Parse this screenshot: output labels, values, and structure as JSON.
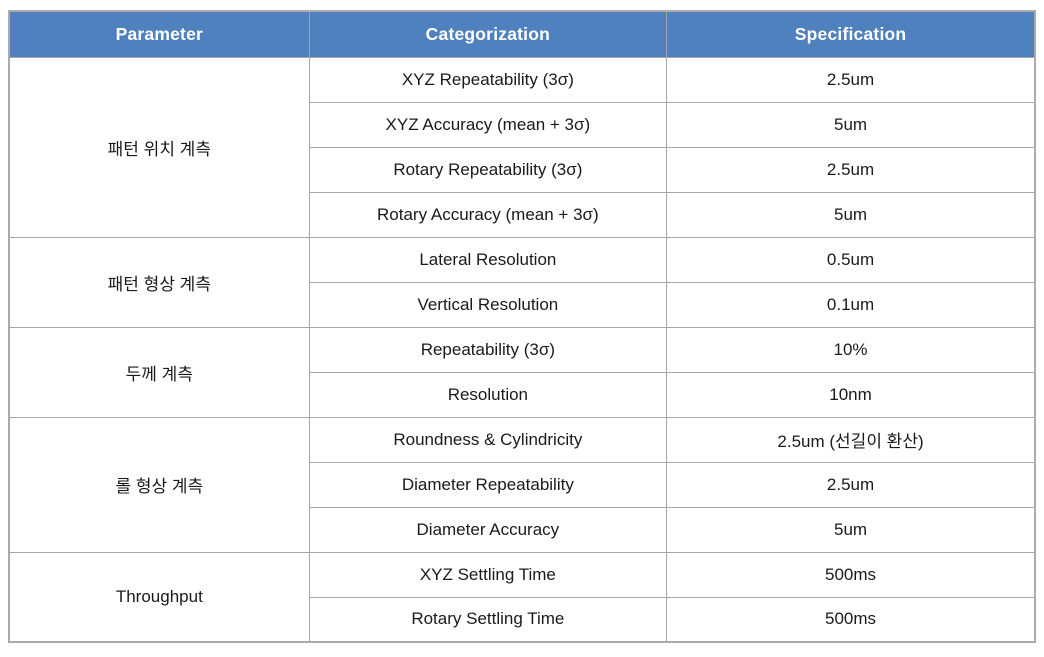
{
  "table": {
    "headers": [
      "Parameter",
      "Categorization",
      "Specification"
    ],
    "groups": [
      {
        "parameter": "패턴 위치 계측",
        "rows": [
          {
            "categorization": "XYZ Repeatability (3σ)",
            "specification": "2.5um"
          },
          {
            "categorization": "XYZ Accuracy (mean + 3σ)",
            "specification": "5um"
          },
          {
            "categorization": "Rotary Repeatability (3σ)",
            "specification": "2.5um"
          },
          {
            "categorization": "Rotary Accuracy (mean + 3σ)",
            "specification": "5um"
          }
        ]
      },
      {
        "parameter": "패턴 형상 계측",
        "rows": [
          {
            "categorization": "Lateral Resolution",
            "specification": "0.5um"
          },
          {
            "categorization": "Vertical Resolution",
            "specification": "0.1um"
          }
        ]
      },
      {
        "parameter": "두께 계측",
        "rows": [
          {
            "categorization": "Repeatability (3σ)",
            "specification": "10%"
          },
          {
            "categorization": "Resolution",
            "specification": "10nm"
          }
        ]
      },
      {
        "parameter": "롤 형상 계측",
        "rows": [
          {
            "categorization": "Roundness & Cylindricity",
            "specification": "2.5um (선길이 환산)"
          },
          {
            "categorization": "Diameter Repeatability",
            "specification": "2.5um"
          },
          {
            "categorization": "Diameter Accuracy",
            "specification": "5um"
          }
        ]
      },
      {
        "parameter": "Throughput",
        "rows": [
          {
            "categorization": "XYZ Settling Time",
            "specification": "500ms"
          },
          {
            "categorization": "Rotary Settling Time",
            "specification": "500ms"
          }
        ]
      }
    ],
    "colors": {
      "header_bg": "#4e81bd",
      "header_text": "#ffffff",
      "body_text": "#1a1a1a",
      "border": "#a6a6a6"
    }
  }
}
